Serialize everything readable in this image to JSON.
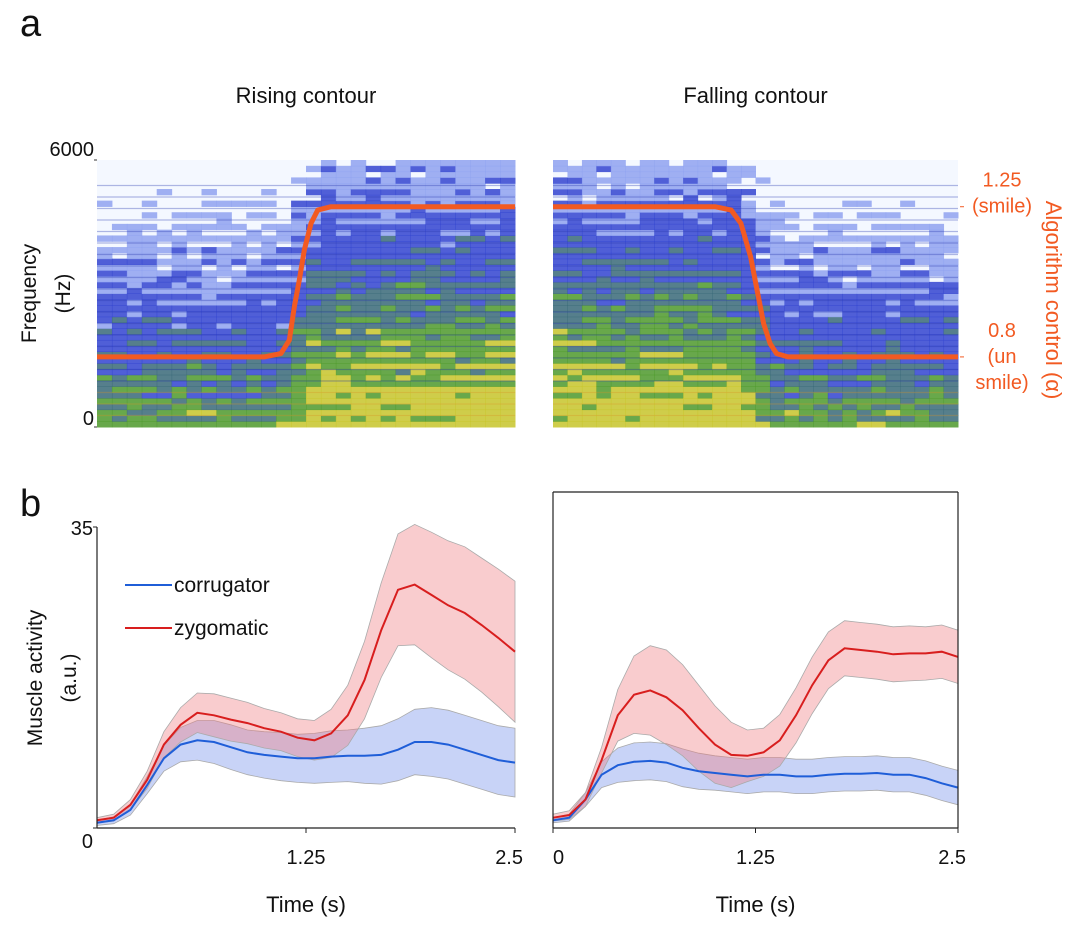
{
  "panel_labels": [
    "a",
    "b"
  ],
  "chart_data": [
    {
      "type": "spectrogram",
      "title": "Rising contour",
      "ylabel": [
        "Frequency",
        "(Hz)"
      ],
      "ylim": [
        0,
        6000
      ],
      "yticks": [
        0,
        6000
      ],
      "xlim": [
        0,
        2.5
      ],
      "y2lim": [
        0.59,
        1.39
      ],
      "contour": {
        "color": "#f25a22",
        "axis": "y2",
        "x": [
          0,
          1.0,
          1.1,
          1.15,
          1.18,
          1.21,
          1.24,
          1.28,
          1.32,
          1.4,
          2.5
        ],
        "values": [
          0.8,
          0.8,
          0.81,
          0.85,
          0.95,
          1.03,
          1.12,
          1.2,
          1.24,
          1.25,
          1.25
        ]
      }
    },
    {
      "type": "spectrogram",
      "title": "Falling contour",
      "ylim": [
        0,
        6000
      ],
      "xlim": [
        0,
        2.5
      ],
      "y2lim": [
        0.59,
        1.39
      ],
      "y2label": "Algorithm control (α)",
      "y2ticks": [
        {
          "value": 1.25,
          "label": "1.25\n(smile)"
        },
        {
          "value": 0.8,
          "label": "0.8\n(un\nsmile)"
        }
      ],
      "contour": {
        "color": "#f25a22",
        "axis": "y2",
        "x": [
          0,
          1.0,
          1.1,
          1.16,
          1.22,
          1.26,
          1.3,
          1.34,
          1.38,
          1.45,
          2.5
        ],
        "values": [
          1.25,
          1.25,
          1.24,
          1.2,
          1.1,
          1.0,
          0.9,
          0.84,
          0.81,
          0.8,
          0.8
        ]
      }
    },
    {
      "type": "band_line",
      "ylabel": [
        "Muscle activity",
        "(a.u.)"
      ],
      "xlabel": "Time (s)",
      "xlim": [
        0,
        2.5
      ],
      "xticks": [
        1.25,
        2.5
      ],
      "ylim": [
        0,
        35
      ],
      "yticks": [
        0,
        35
      ],
      "legend": "upper left",
      "x": [
        0,
        0.1,
        0.2,
        0.3,
        0.4,
        0.5,
        0.6,
        0.7,
        0.8,
        0.9,
        1.0,
        1.1,
        1.2,
        1.3,
        1.4,
        1.5,
        1.6,
        1.7,
        1.8,
        1.9,
        2.0,
        2.1,
        2.2,
        2.3,
        2.4,
        2.5
      ],
      "series": [
        {
          "name": "corrugator",
          "color": "#1f5ed8",
          "band_color": "rgba(110,140,235,0.38)",
          "values": [
            0.6,
            0.9,
            2.1,
            5,
            8.1,
            9.7,
            10.2,
            10,
            9.4,
            8.8,
            8.5,
            8.3,
            8.1,
            8.1,
            8.3,
            8.4,
            8.4,
            8.5,
            9.1,
            10,
            10,
            9.7,
            9.1,
            8.5,
            7.9,
            7.6
          ],
          "errors": [
            0.3,
            0.4,
            0.6,
            1,
            1.5,
            2,
            2.3,
            2.5,
            2.6,
            2.6,
            2.7,
            2.8,
            2.8,
            2.9,
            3,
            3,
            3.2,
            3.4,
            3.6,
            3.8,
            4,
            4,
            4,
            4,
            4,
            4
          ]
        },
        {
          "name": "zygomatic",
          "color": "#d81e1e",
          "band_color": "rgba(240,120,125,0.38)",
          "values": [
            0.9,
            1.2,
            2.7,
            5.6,
            9.7,
            12,
            13.4,
            13.1,
            12.6,
            12.2,
            11.6,
            11.2,
            10.5,
            10.2,
            11,
            13.1,
            17.2,
            23,
            27.7,
            28.3,
            27.1,
            25.9,
            25,
            23.6,
            22.1,
            20.5
          ],
          "errors": [
            0.3,
            0.4,
            0.6,
            1,
            1.5,
            2,
            2.3,
            2.5,
            2.5,
            2.4,
            2.3,
            2.2,
            2.2,
            2.3,
            2.8,
            3.5,
            4.5,
            5.5,
            6.5,
            7,
            7.3,
            7.5,
            7.7,
            7.8,
            8,
            8.2
          ]
        }
      ]
    },
    {
      "type": "band_line",
      "xlabel": "Time (s)",
      "xlim": [
        0,
        2.5
      ],
      "xticks": [
        0,
        1.25,
        2.5
      ],
      "ylim": [
        0,
        35
      ],
      "x": [
        0,
        0.1,
        0.2,
        0.3,
        0.4,
        0.5,
        0.6,
        0.7,
        0.8,
        0.9,
        1.0,
        1.1,
        1.2,
        1.3,
        1.4,
        1.5,
        1.6,
        1.7,
        1.8,
        1.9,
        2.0,
        2.1,
        2.2,
        2.3,
        2.4,
        2.5
      ],
      "series": [
        {
          "color": "#1f5ed8",
          "band_color": "rgba(110,140,235,0.38)",
          "values": [
            0.9,
            1.2,
            3.3,
            6.2,
            7.3,
            7.7,
            7.8,
            7.6,
            7,
            6.6,
            6.4,
            6.2,
            6,
            6.2,
            6.2,
            6,
            6,
            6.2,
            6.3,
            6.3,
            6.4,
            6.2,
            6.2,
            5.8,
            5.2,
            4.7
          ],
          "errors": [
            0.3,
            0.4,
            0.8,
            1.5,
            2,
            2.2,
            2.2,
            2.2,
            2.2,
            2.1,
            2,
            2,
            2,
            2,
            2,
            2,
            2,
            2,
            2,
            2,
            2,
            2,
            2,
            2,
            2,
            2
          ]
        },
        {
          "color": "#d81e1e",
          "band_color": "rgba(240,120,125,0.38)",
          "values": [
            1.2,
            1.5,
            3.3,
            7.9,
            13.1,
            15.5,
            16,
            15.2,
            13.7,
            11.6,
            9.7,
            8.5,
            8.4,
            8.8,
            10.2,
            13.1,
            16.6,
            19.5,
            20.9,
            20.7,
            20.5,
            20.2,
            20.3,
            20.3,
            20.5,
            19.9
          ],
          "errors": [
            0.4,
            0.5,
            0.8,
            1.5,
            3,
            4.5,
            5.2,
            5.5,
            5.3,
            5,
            4.5,
            3.8,
            3,
            2.8,
            3,
            3.2,
            3.3,
            3.3,
            3.2,
            3.2,
            3.2,
            3.2,
            3.2,
            3.1,
            3.1,
            3.1
          ]
        }
      ]
    }
  ]
}
